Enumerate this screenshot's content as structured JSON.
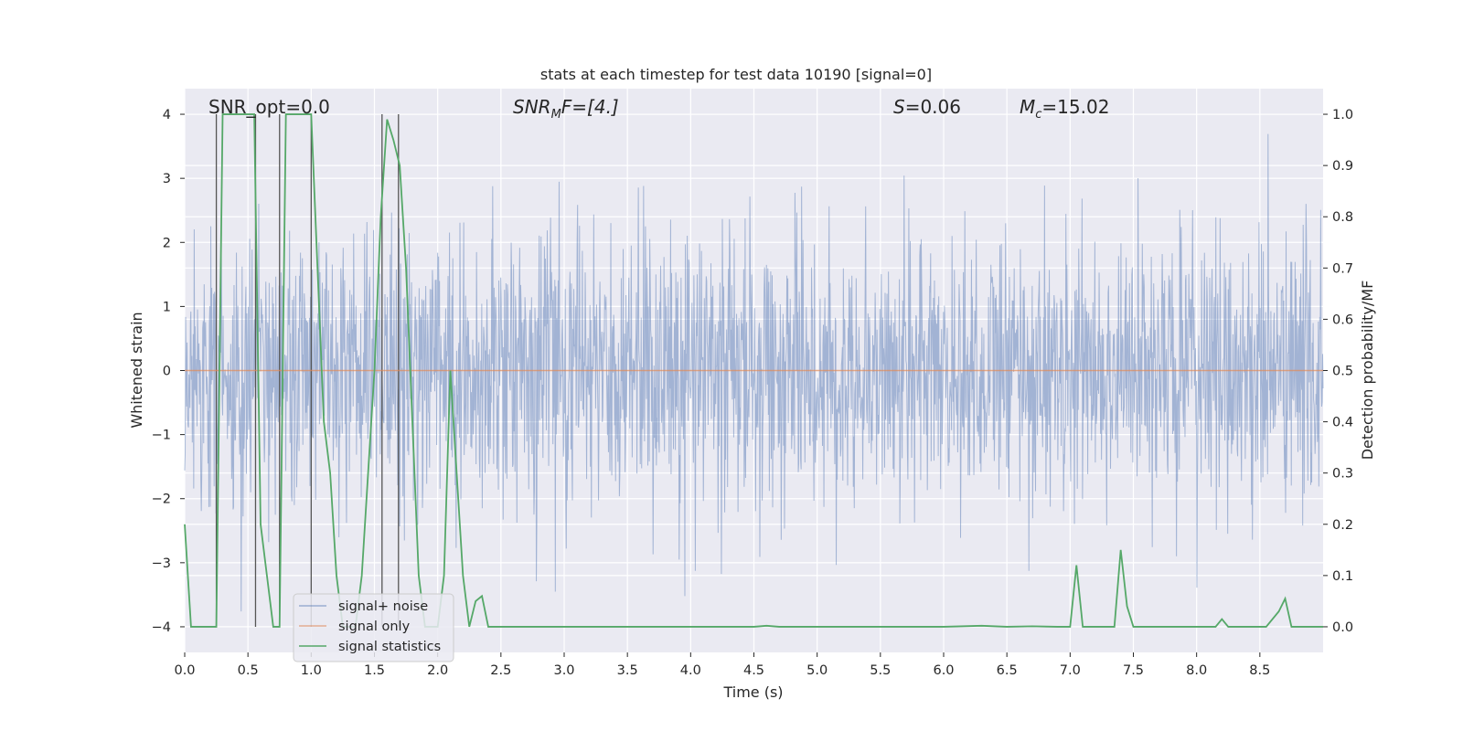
{
  "chart_data": {
    "type": "line",
    "title": "stats at each timestep for test data 10190 [signal=0]",
    "xlabel": "Time (s)",
    "ylabel_left": "Whitened strain",
    "ylabel_right": "Detection probability/MF",
    "xlim": [
      0.0,
      9.0
    ],
    "ylim_left": [
      -4.4,
      4.4
    ],
    "ylim_right": [
      -0.05,
      1.05
    ],
    "xticks": [
      "0.0",
      "0.5",
      "1.0",
      "1.5",
      "2.0",
      "2.5",
      "3.0",
      "3.5",
      "4.0",
      "4.5",
      "5.0",
      "5.5",
      "6.0",
      "6.5",
      "7.0",
      "7.5",
      "8.0",
      "8.5"
    ],
    "yticks_left": [
      "4",
      "3",
      "2",
      "1",
      "0",
      "−1",
      "−2",
      "−3",
      "−4"
    ],
    "yticks_left_values": [
      4,
      3,
      2,
      1,
      0,
      -1,
      -2,
      -3,
      -4
    ],
    "yticks_right": [
      "1.0",
      "0.9",
      "0.8",
      "0.7",
      "0.6",
      "0.5",
      "0.4",
      "0.3",
      "0.2",
      "0.1",
      "0.0"
    ],
    "yticks_right_values": [
      1.0,
      0.9,
      0.8,
      0.7,
      0.6,
      0.5,
      0.4,
      0.3,
      0.2,
      0.1,
      0.0
    ],
    "grid": true,
    "legend_position": "lower-left",
    "annotations": {
      "snr_opt": "SNR_opt=0.0",
      "snr_mf_main": "SNR",
      "snr_mf_sub": "M",
      "snr_mf_rest": "F=[4.]",
      "s_main": "S",
      "s_rest": "=0.06",
      "mc_main": "M",
      "mc_sub": "c",
      "mc_rest": "=15.02"
    },
    "series": [
      {
        "name": "signal+ noise",
        "color": "#4c72b0",
        "axis": "left",
        "description_only": true
      },
      {
        "name": "signal only",
        "color": "#dd8452",
        "axis": "left",
        "x": [
          0.0,
          9.0
        ],
        "y": [
          0.0,
          0.0
        ]
      },
      {
        "name": "signal statistics",
        "color": "#55a868",
        "axis": "right",
        "x": [
          0.0,
          0.05,
          0.1,
          0.15,
          0.2,
          0.25,
          0.3,
          0.35,
          0.4,
          0.45,
          0.5,
          0.55,
          0.6,
          0.65,
          0.7,
          0.75,
          0.8,
          0.85,
          0.9,
          0.95,
          1.0,
          1.05,
          1.1,
          1.15,
          1.2,
          1.25,
          1.3,
          1.35,
          1.4,
          1.45,
          1.5,
          1.55,
          1.6,
          1.65,
          1.7,
          1.75,
          1.8,
          1.85,
          1.9,
          1.95,
          2.0,
          2.05,
          2.1,
          2.15,
          2.2,
          2.25,
          2.3,
          2.35,
          2.4,
          2.45,
          2.5,
          2.6,
          2.7,
          2.8,
          2.9,
          2.95,
          3.0,
          3.5,
          4.0,
          4.5,
          4.6,
          4.7,
          5.0,
          5.5,
          6.0,
          6.3,
          6.5,
          6.7,
          6.9,
          7.0,
          7.05,
          7.1,
          7.15,
          7.2,
          7.3,
          7.35,
          7.4,
          7.45,
          7.5,
          7.6,
          7.8,
          8.0,
          8.1,
          8.15,
          8.2,
          8.25,
          8.3,
          8.4,
          8.55,
          8.65,
          8.7,
          8.75,
          8.8,
          9.0
        ],
        "y": [
          0.2,
          0.0,
          0.0,
          0.0,
          0.0,
          0.0,
          1.0,
          1.0,
          1.0,
          1.0,
          1.0,
          1.0,
          0.2,
          0.1,
          0.0,
          0.0,
          1.0,
          1.0,
          1.0,
          1.0,
          1.0,
          0.7,
          0.4,
          0.3,
          0.1,
          0.0,
          0.0,
          0.0,
          0.1,
          0.3,
          0.5,
          0.8,
          0.99,
          0.95,
          0.9,
          0.7,
          0.4,
          0.1,
          0.0,
          0.0,
          0.0,
          0.1,
          0.5,
          0.3,
          0.1,
          0.0,
          0.05,
          0.06,
          0.0,
          0.0,
          0.0,
          0.0,
          0.0,
          0.0,
          0.0,
          0.0,
          0.0,
          0.0,
          0.0,
          0.0,
          0.002,
          0.0,
          0.0,
          0.0,
          0.0,
          0.002,
          0.0,
          0.001,
          0.0,
          0.0,
          0.12,
          0.0,
          0.0,
          0.0,
          0.0,
          0.0,
          0.15,
          0.04,
          0.0,
          0.0,
          0.0,
          0.0,
          0.0,
          0.0,
          0.015,
          0.0,
          0.0,
          0.0,
          0.0,
          0.03,
          0.055,
          0.0,
          0.0,
          0.0
        ]
      }
    ],
    "vertical_markers": [
      0.25,
      0.56,
      0.75,
      1.0,
      1.56,
      1.69
    ]
  }
}
